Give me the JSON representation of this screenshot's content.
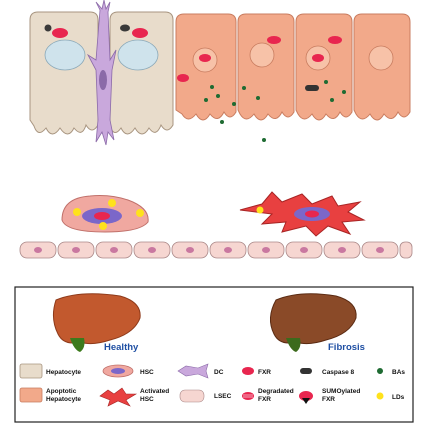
{
  "legend": {
    "healthy_label": "Healthy",
    "fibrosis_label": "Fibrosis",
    "items": {
      "hepatocyte": "Hepatocyte",
      "apoptotic_line1": "Apoptotic",
      "apoptotic_line2": "Hepatocyte",
      "hsc": "HSC",
      "activated_line1": "Activated",
      "activated_line2": "HSC",
      "dc": "DC",
      "lsec": "LSEC",
      "fxr": "FXR",
      "degraded_line1": "Degradated",
      "degraded_line2": "FXR",
      "caspase": "Caspase 8",
      "sumo_line1": "SUMOylated",
      "sumo_line2": "FXR",
      "bas": "BAs",
      "lds": "LDs"
    }
  },
  "colors": {
    "healthy_hepatocyte": "#e8dccb",
    "apoptotic_hepatocyte": "#f2a98a",
    "dc": "#c9a8dc",
    "fxr": "#e8264f",
    "bile_acid": "#1e6b32",
    "lipid_droplet": "#ffe21c",
    "lsec": "#f6d6d1",
    "caspase": "#333333",
    "label_blue": "#1f4fa3"
  }
}
